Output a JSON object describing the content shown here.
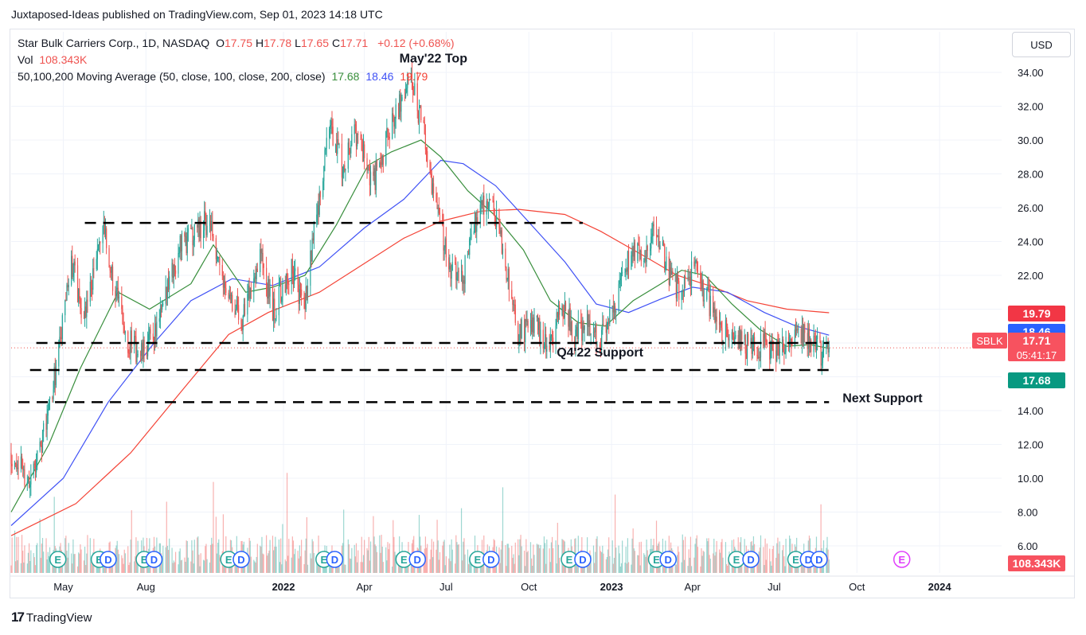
{
  "header": {
    "publisher": "Juxtaposed-Ideas published on TradingView.com, Sep 01, 2023 14:18 UTC"
  },
  "legend": {
    "symbol_line": "Star Bulk Carriers Corp., 1D, NASDAQ",
    "ohlc": [
      {
        "label": "O",
        "value": "17.75"
      },
      {
        "label": "H",
        "value": "17.78"
      },
      {
        "label": "L",
        "value": "17.65"
      },
      {
        "label": "C",
        "value": "17.71"
      }
    ],
    "change": "+0.12 (+0.68%)",
    "vol_label": "Vol",
    "vol_value": "108.343K",
    "ma_label": "50,100,200 Moving Average (50, close, 100, close, 200, close)",
    "ma_values": [
      "17.68",
      "18.46",
      "19.79"
    ]
  },
  "currency": "USD",
  "footer": {
    "logo_text": "TradingView",
    "logo_mark": "17"
  },
  "colors": {
    "up": "#26a69a",
    "down": "#ef5350",
    "ma50": "#388e3c",
    "ma100": "#3f51f5",
    "ma200": "#f44336",
    "grid": "#f0f3fa",
    "text": "#131722",
    "price_line": "#ef5350",
    "earnings": "#26a69a",
    "dividend": "#2962ff",
    "future_earn": "#e040fb"
  },
  "chart_data": {
    "type": "candlestick",
    "symbol": "SBLK",
    "y_axis": {
      "ticks": [
        "6.00",
        "8.00",
        "10.00",
        "12.00",
        "14.00",
        "16.00",
        "18.00",
        "20.00",
        "22.00",
        "24.00",
        "26.00",
        "28.00",
        "30.00",
        "32.00",
        "34.00"
      ],
      "range": [
        4.4,
        36.4
      ]
    },
    "x_axis": {
      "ticks": [
        {
          "label": "May",
          "date": "2021-05-01"
        },
        {
          "label": "Aug",
          "date": "2021-08-01"
        },
        {
          "label": "2022",
          "date": "2022-01-01",
          "bold": true
        },
        {
          "label": "Apr",
          "date": "2022-04-01"
        },
        {
          "label": "Jul",
          "date": "2022-07-01"
        },
        {
          "label": "Oct",
          "date": "2022-10-01"
        },
        {
          "label": "2023",
          "date": "2023-01-01",
          "bold": true
        },
        {
          "label": "Apr",
          "date": "2023-04-01"
        },
        {
          "label": "Jul",
          "date": "2023-07-01"
        },
        {
          "label": "Oct",
          "date": "2023-10-01"
        },
        {
          "label": "2024",
          "date": "2024-01-01",
          "bold": true
        }
      ],
      "range": [
        "2021-03-04",
        "2024-03-10"
      ]
    },
    "price_series": [
      {
        "date": "2021-03-04",
        "close": 11.5
      },
      {
        "date": "2021-03-25",
        "close": 9.8
      },
      {
        "date": "2021-04-12",
        "close": 13.2
      },
      {
        "date": "2021-04-26",
        "close": 17.5
      },
      {
        "date": "2021-05-10",
        "close": 22.8
      },
      {
        "date": "2021-05-24",
        "close": 19.5
      },
      {
        "date": "2021-06-14",
        "close": 24.8
      },
      {
        "date": "2021-06-28",
        "close": 21.0
      },
      {
        "date": "2021-07-12",
        "close": 18.2
      },
      {
        "date": "2021-07-26",
        "close": 17.2
      },
      {
        "date": "2021-08-16",
        "close": 19.2
      },
      {
        "date": "2021-09-06",
        "close": 23.5
      },
      {
        "date": "2021-09-27",
        "close": 24.8
      },
      {
        "date": "2021-10-11",
        "close": 25.3
      },
      {
        "date": "2021-10-25",
        "close": 22.0
      },
      {
        "date": "2021-11-15",
        "close": 19.3
      },
      {
        "date": "2021-12-06",
        "close": 23.5
      },
      {
        "date": "2021-12-20",
        "close": 19.8
      },
      {
        "date": "2022-01-10",
        "close": 22.5
      },
      {
        "date": "2022-01-24",
        "close": 20.0
      },
      {
        "date": "2022-02-07",
        "close": 25.5
      },
      {
        "date": "2022-02-21",
        "close": 31.0
      },
      {
        "date": "2022-03-07",
        "close": 28.5
      },
      {
        "date": "2022-03-21",
        "close": 30.5
      },
      {
        "date": "2022-04-11",
        "close": 27.5
      },
      {
        "date": "2022-05-02",
        "close": 31.0
      },
      {
        "date": "2022-05-23",
        "close": 33.5
      },
      {
        "date": "2022-06-06",
        "close": 30.5
      },
      {
        "date": "2022-06-20",
        "close": 26.0
      },
      {
        "date": "2022-07-05",
        "close": 22.5
      },
      {
        "date": "2022-07-18",
        "close": 21.5
      },
      {
        "date": "2022-08-08",
        "close": 26.5
      },
      {
        "date": "2022-08-22",
        "close": 26.0
      },
      {
        "date": "2022-09-06",
        "close": 22.5
      },
      {
        "date": "2022-09-19",
        "close": 18.5
      },
      {
        "date": "2022-10-10",
        "close": 19.0
      },
      {
        "date": "2022-10-24",
        "close": 17.5
      },
      {
        "date": "2022-11-07",
        "close": 20.5
      },
      {
        "date": "2022-11-21",
        "close": 18.5
      },
      {
        "date": "2022-12-05",
        "close": 19.0
      },
      {
        "date": "2022-12-19",
        "close": 18.0
      },
      {
        "date": "2023-01-09",
        "close": 21.0
      },
      {
        "date": "2023-01-23",
        "close": 23.3
      },
      {
        "date": "2023-02-06",
        "close": 23.0
      },
      {
        "date": "2023-02-20",
        "close": 24.8
      },
      {
        "date": "2023-03-06",
        "close": 22.0
      },
      {
        "date": "2023-03-20",
        "close": 21.0
      },
      {
        "date": "2023-04-03",
        "close": 22.3
      },
      {
        "date": "2023-04-17",
        "close": 20.8
      },
      {
        "date": "2023-05-01",
        "close": 18.5
      },
      {
        "date": "2023-05-15",
        "close": 18.8
      },
      {
        "date": "2023-06-05",
        "close": 17.5
      },
      {
        "date": "2023-06-19",
        "close": 17.9
      },
      {
        "date": "2023-07-03",
        "close": 17.3
      },
      {
        "date": "2023-07-17",
        "close": 17.8
      },
      {
        "date": "2023-07-31",
        "close": 18.5
      },
      {
        "date": "2023-08-14",
        "close": 18.0
      },
      {
        "date": "2023-08-24",
        "close": 17.1
      },
      {
        "date": "2023-08-31",
        "close": 17.71
      }
    ],
    "ma50": [
      {
        "date": "2021-03-04",
        "value": 8.0
      },
      {
        "date": "2021-04-15",
        "value": 12.0
      },
      {
        "date": "2021-05-20",
        "value": 16.5
      },
      {
        "date": "2021-07-01",
        "value": 21.0
      },
      {
        "date": "2021-08-05",
        "value": 20.0
      },
      {
        "date": "2021-09-20",
        "value": 21.5
      },
      {
        "date": "2021-10-15",
        "value": 23.8
      },
      {
        "date": "2021-11-20",
        "value": 21.0
      },
      {
        "date": "2021-12-20",
        "value": 21.3
      },
      {
        "date": "2022-01-25",
        "value": 22.0
      },
      {
        "date": "2022-03-01",
        "value": 25.0
      },
      {
        "date": "2022-04-05",
        "value": 28.5
      },
      {
        "date": "2022-05-01",
        "value": 29.3
      },
      {
        "date": "2022-06-03",
        "value": 30.0
      },
      {
        "date": "2022-06-25",
        "value": 29.0
      },
      {
        "date": "2022-07-25",
        "value": 27.0
      },
      {
        "date": "2022-08-25",
        "value": 25.5
      },
      {
        "date": "2022-09-25",
        "value": 23.5
      },
      {
        "date": "2022-10-25",
        "value": 20.5
      },
      {
        "date": "2022-11-25",
        "value": 19.2
      },
      {
        "date": "2022-12-25",
        "value": 19.0
      },
      {
        "date": "2023-01-25",
        "value": 20.5
      },
      {
        "date": "2023-02-25",
        "value": 21.5
      },
      {
        "date": "2023-03-20",
        "value": 22.3
      },
      {
        "date": "2023-04-15",
        "value": 22.0
      },
      {
        "date": "2023-05-15",
        "value": 20.3
      },
      {
        "date": "2023-06-15",
        "value": 18.8
      },
      {
        "date": "2023-07-15",
        "value": 17.8
      },
      {
        "date": "2023-08-10",
        "value": 17.9
      },
      {
        "date": "2023-08-31",
        "value": 17.68
      }
    ],
    "ma100": [
      {
        "date": "2021-03-04",
        "value": 7.2
      },
      {
        "date": "2021-05-01",
        "value": 10.0
      },
      {
        "date": "2021-06-20",
        "value": 14.5
      },
      {
        "date": "2021-08-10",
        "value": 18.0
      },
      {
        "date": "2021-09-20",
        "value": 20.5
      },
      {
        "date": "2021-11-05",
        "value": 21.8
      },
      {
        "date": "2021-12-20",
        "value": 21.4
      },
      {
        "date": "2022-02-10",
        "value": 22.5
      },
      {
        "date": "2022-04-01",
        "value": 24.8
      },
      {
        "date": "2022-05-15",
        "value": 26.5
      },
      {
        "date": "2022-06-25",
        "value": 28.8
      },
      {
        "date": "2022-07-20",
        "value": 28.6
      },
      {
        "date": "2022-08-25",
        "value": 27.3
      },
      {
        "date": "2022-09-25",
        "value": 25.5
      },
      {
        "date": "2022-11-10",
        "value": 22.8
      },
      {
        "date": "2022-12-15",
        "value": 20.3
      },
      {
        "date": "2023-01-20",
        "value": 19.8
      },
      {
        "date": "2023-02-25",
        "value": 20.6
      },
      {
        "date": "2023-04-01",
        "value": 21.3
      },
      {
        "date": "2023-05-10",
        "value": 21.0
      },
      {
        "date": "2023-06-20",
        "value": 19.8
      },
      {
        "date": "2023-07-25",
        "value": 19.0
      },
      {
        "date": "2023-08-31",
        "value": 18.46
      }
    ],
    "ma200": [
      {
        "date": "2021-03-04",
        "value": 6.6
      },
      {
        "date": "2021-05-15",
        "value": 8.5
      },
      {
        "date": "2021-07-15",
        "value": 11.5
      },
      {
        "date": "2021-09-15",
        "value": 15.5
      },
      {
        "date": "2021-11-01",
        "value": 18.5
      },
      {
        "date": "2021-12-15",
        "value": 19.8
      },
      {
        "date": "2022-02-10",
        "value": 21.0
      },
      {
        "date": "2022-04-01",
        "value": 22.7
      },
      {
        "date": "2022-05-15",
        "value": 24.2
      },
      {
        "date": "2022-06-25",
        "value": 25.2
      },
      {
        "date": "2022-08-10",
        "value": 25.8
      },
      {
        "date": "2022-09-20",
        "value": 25.9
      },
      {
        "date": "2022-11-10",
        "value": 25.6
      },
      {
        "date": "2022-12-20",
        "value": 24.6
      },
      {
        "date": "2023-02-01",
        "value": 23.3
      },
      {
        "date": "2023-03-15",
        "value": 22.0
      },
      {
        "date": "2023-04-25",
        "value": 21.3
      },
      {
        "date": "2023-06-01",
        "value": 20.5
      },
      {
        "date": "2023-07-15",
        "value": 20.0
      },
      {
        "date": "2023-08-31",
        "value": 19.79
      }
    ],
    "hlines": [
      {
        "from": "2021-05-25",
        "to": "2022-11-30",
        "value": 25.1
      },
      {
        "from": "2021-04-01",
        "to": "2023-08-31",
        "value": 18.0
      },
      {
        "from": "2021-03-25",
        "to": "2023-08-31",
        "value": 16.4
      },
      {
        "from": "2021-03-12",
        "to": "2023-08-31",
        "value": 14.5
      }
    ],
    "annotations": [
      {
        "text": "May'22 Top",
        "date": "2022-05-10",
        "value": 34.6
      },
      {
        "text": "Q4'22 Support",
        "date": "2022-11-01",
        "value": 17.2
      },
      {
        "text": "Next Support",
        "date": "2023-09-15",
        "value": 14.5
      }
    ],
    "events": [
      {
        "type": "E",
        "date": "2021-04-25"
      },
      {
        "type": "E",
        "date": "2021-06-10"
      },
      {
        "type": "D",
        "date": "2021-06-20"
      },
      {
        "type": "E",
        "date": "2021-07-30"
      },
      {
        "type": "D",
        "date": "2021-08-10"
      },
      {
        "type": "E",
        "date": "2021-11-01"
      },
      {
        "type": "D",
        "date": "2021-11-15"
      },
      {
        "type": "E",
        "date": "2022-02-15"
      },
      {
        "type": "D",
        "date": "2022-02-27"
      },
      {
        "type": "E",
        "date": "2022-05-15"
      },
      {
        "type": "D",
        "date": "2022-05-30"
      },
      {
        "type": "E",
        "date": "2022-08-05"
      },
      {
        "type": "D",
        "date": "2022-08-20"
      },
      {
        "type": "E",
        "date": "2022-11-15"
      },
      {
        "type": "D",
        "date": "2022-11-30"
      },
      {
        "type": "E",
        "date": "2023-02-20"
      },
      {
        "type": "D",
        "date": "2023-03-05"
      },
      {
        "type": "E",
        "date": "2023-05-20"
      },
      {
        "type": "D",
        "date": "2023-06-05"
      },
      {
        "type": "E",
        "date": "2023-07-25"
      },
      {
        "type": "D",
        "date": "2023-08-08"
      },
      {
        "type": "D",
        "date": "2023-08-20"
      },
      {
        "type": "E",
        "date": "2023-11-20",
        "future": true
      }
    ],
    "price_labels": [
      {
        "value": "19.79",
        "price": 19.79,
        "color": "#f23645"
      },
      {
        "value": "18.46",
        "price": 18.46,
        "color": "#2962ff"
      },
      {
        "value": "17.71",
        "price": 17.71,
        "color": "#f7525f",
        "sub": "05:41:17",
        "tag": "SBLK"
      },
      {
        "value": "17.68",
        "price": 17.68,
        "color": "#089981"
      },
      {
        "value": "108.343K",
        "price": null,
        "color": "#f7525f"
      }
    ]
  }
}
